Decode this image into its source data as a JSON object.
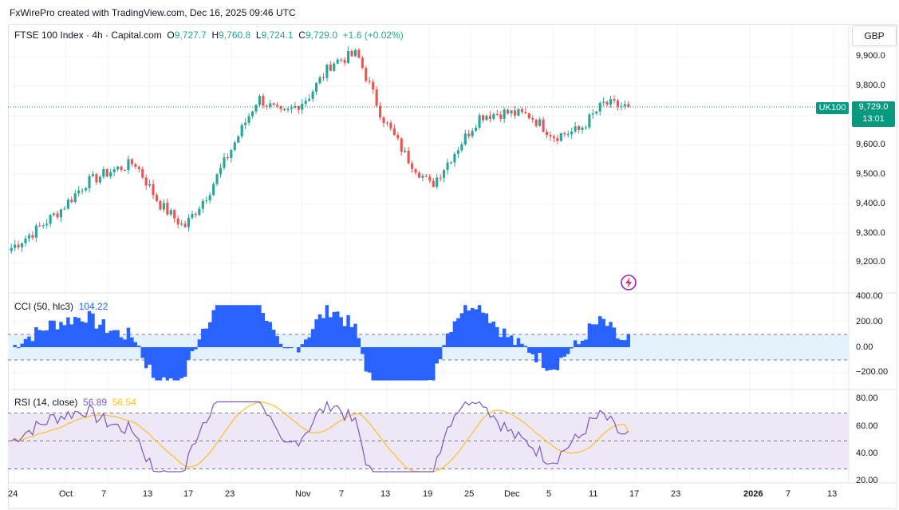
{
  "credit": "FxWirePro created with TradingView.com, Dec 16, 2025 09:46 UTC",
  "legend": {
    "symbol": "FTSE 100 Index · 4h · Capital.com",
    "o_label": "O",
    "o": "9,727.7",
    "h_label": "H",
    "h": "9,760.8",
    "l_label": "L",
    "l": "9,724.1",
    "c_label": "C",
    "c": "9,729.0",
    "change": "+1.6 (+0.02%)"
  },
  "currency_button": "GBP",
  "price_axis": [
    "9,900.0",
    "9,800.0",
    "9,700.0",
    "9,600.0",
    "9,500.0",
    "9,400.0",
    "9,300.0",
    "9,200.0"
  ],
  "symbol_tag": "UK100",
  "price_tag": {
    "price": "9,729.0",
    "countdown": "13:01"
  },
  "cci": {
    "label": "CCI (50, hlc3)",
    "value": "104.22",
    "axis": [
      "400.00",
      "200.00",
      "0.00",
      "−200.00"
    ],
    "upper_band": 100,
    "lower_band": -100
  },
  "rsi": {
    "label": "RSI (14, close)",
    "value": "56.89",
    "ma_value": "56.54",
    "axis": [
      "80.00",
      "60.00",
      "40.00",
      "20.00"
    ],
    "upper_band": 70,
    "middle_band": 50,
    "lower_band": 30
  },
  "time_axis": [
    "24",
    "Oct",
    "7",
    "13",
    "17",
    "23",
    "Nov",
    "7",
    "13",
    "19",
    "25",
    "Dec",
    "5",
    "11",
    "17",
    "23",
    "2026",
    "7",
    "13"
  ],
  "colors": {
    "up": "#26a69a",
    "down": "#ef5350",
    "cci_fill": "#2962ff",
    "cci_band_bg": "#e3f2fd",
    "rsi_line": "#7e57c2",
    "rsi_ma": "#fbc02d",
    "rsi_band_bg": "#ede7f6",
    "last_price_line": "#089981"
  },
  "icons": [
    "tradingview-lightning-icon"
  ],
  "chart_data": {
    "type": "candlestick",
    "timeframe": "4h",
    "ylim": [
      9150,
      9950
    ],
    "last_close": 9729.0,
    "close_path_keypoints": [
      {
        "x": "Sep 24",
        "y": 9250
      },
      {
        "x": "Sep 26",
        "y": 9310
      },
      {
        "x": "Sep 29",
        "y": 9380
      },
      {
        "x": "Oct 1",
        "y": 9470
      },
      {
        "x": "Oct 7",
        "y": 9510
      },
      {
        "x": "Oct 9",
        "y": 9540
      },
      {
        "x": "Oct 13",
        "y": 9400
      },
      {
        "x": "Oct 17",
        "y": 9320
      },
      {
        "x": "Oct 21",
        "y": 9440
      },
      {
        "x": "Oct 24",
        "y": 9600
      },
      {
        "x": "Oct 29",
        "y": 9760
      },
      {
        "x": "Nov 3",
        "y": 9700
      },
      {
        "x": "Nov 6",
        "y": 9760
      },
      {
        "x": "Nov 10",
        "y": 9880
      },
      {
        "x": "Nov 12",
        "y": 9910
      },
      {
        "x": "Nov 14",
        "y": 9700
      },
      {
        "x": "Nov 18",
        "y": 9560
      },
      {
        "x": "Nov 21",
        "y": 9460
      },
      {
        "x": "Nov 24",
        "y": 9580
      },
      {
        "x": "Nov 28",
        "y": 9700
      },
      {
        "x": "Dec 2",
        "y": 9710
      },
      {
        "x": "Dec 5",
        "y": 9700
      },
      {
        "x": "Dec 8",
        "y": 9630
      },
      {
        "x": "Dec 10",
        "y": 9650
      },
      {
        "x": "Dec 12",
        "y": 9740
      },
      {
        "x": "Dec 16",
        "y": 9729
      }
    ]
  }
}
